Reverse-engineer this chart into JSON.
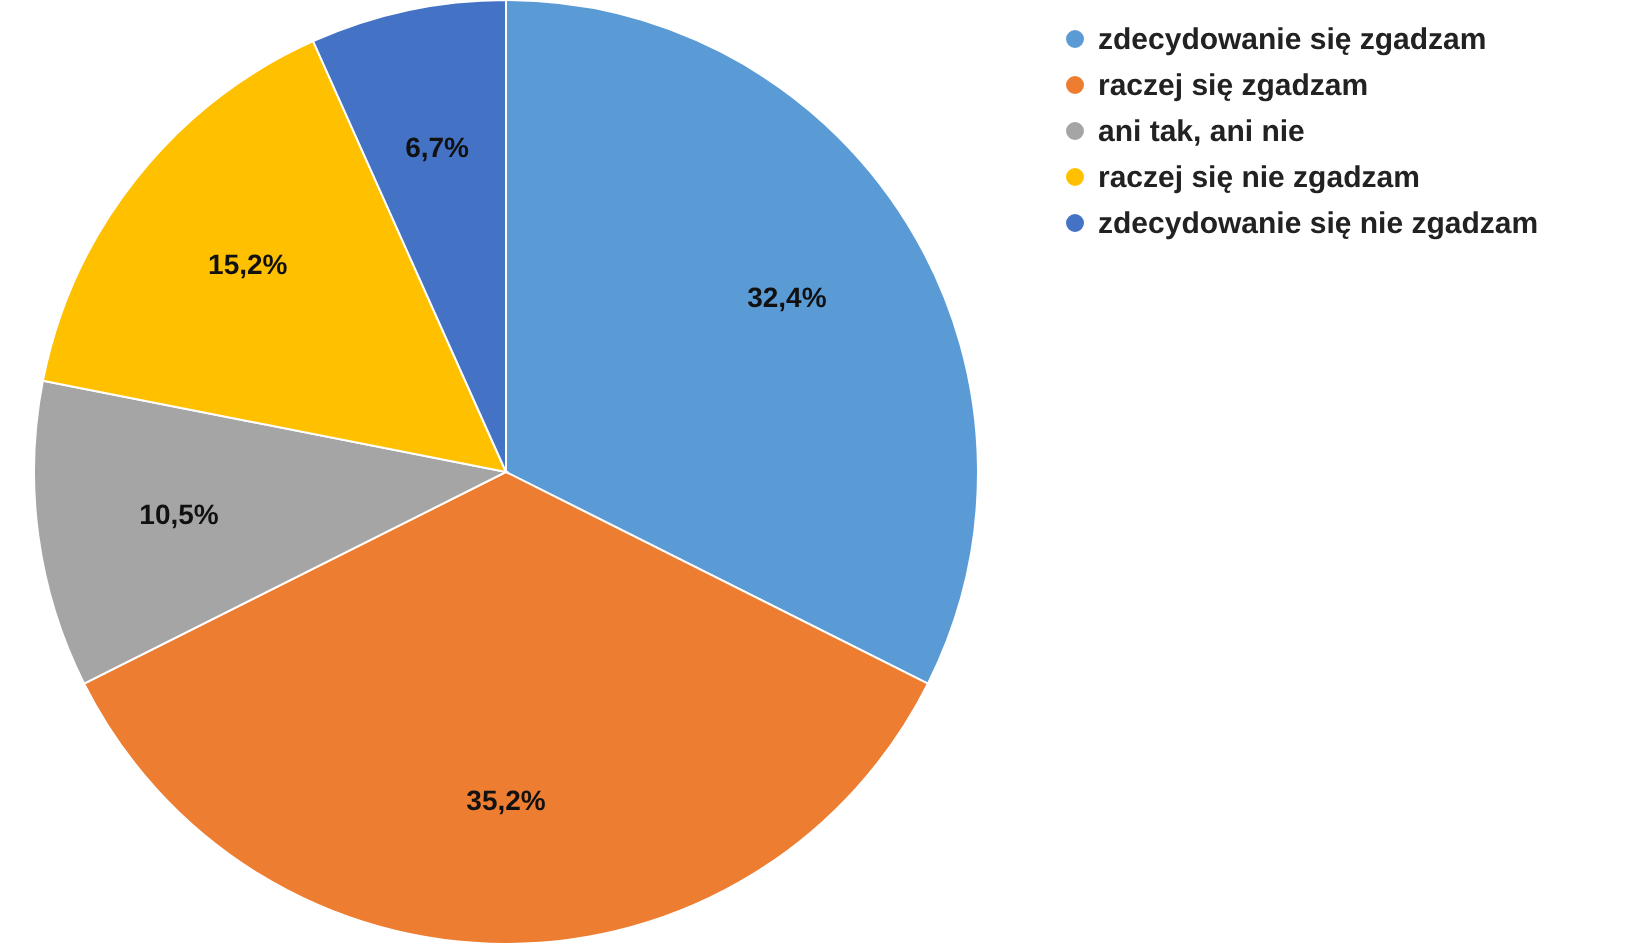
{
  "chart_data": {
    "type": "pie",
    "categories": [
      "zdecydowanie się zgadzam",
      "raczej się zgadzam",
      "ani tak, ani nie",
      "raczej się nie zgadzam",
      "zdecydowanie się nie zgadzam"
    ],
    "values": [
      32.4,
      35.2,
      10.5,
      15.2,
      6.7
    ],
    "colors": [
      "#5b9bd5",
      "#ed7d31",
      "#a5a5a5",
      "#ffc000",
      "#4472c4"
    ],
    "value_labels": [
      "32,4%",
      "35,2%",
      "10,5%",
      "15,2%",
      "6,7%"
    ],
    "legend": "top right"
  }
}
